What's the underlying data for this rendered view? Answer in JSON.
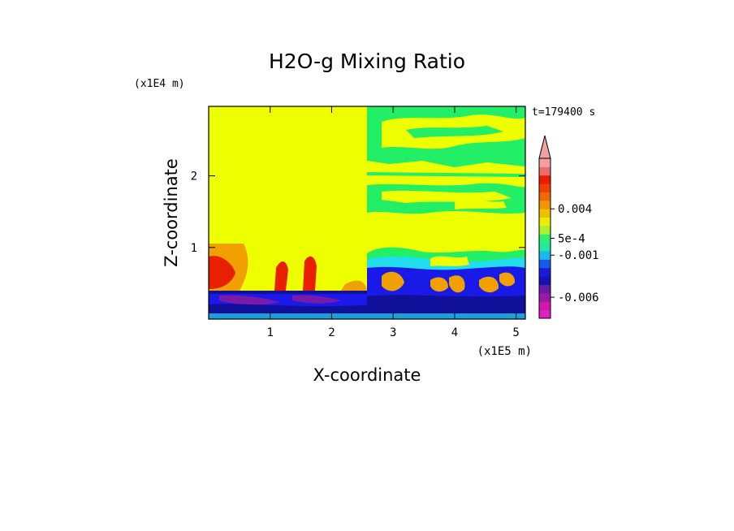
{
  "chart_data": {
    "type": "heatmap",
    "title": "H2O-g Mixing Ratio",
    "xlabel": "X-coordinate",
    "ylabel": "Z-coordinate",
    "x_scale_label": "(x1E5 m)",
    "y_scale_label": "(x1E4 m)",
    "time_label": "t=179400 s",
    "xlim": [
      0,
      5.15
    ],
    "ylim": [
      0,
      2.97
    ],
    "x_ticks": [
      {
        "value": 1,
        "label": "1"
      },
      {
        "value": 2,
        "label": "2"
      },
      {
        "value": 3,
        "label": "3"
      },
      {
        "value": 4,
        "label": "4"
      },
      {
        "value": 5,
        "label": "5"
      }
    ],
    "y_ticks": [
      {
        "value": 1,
        "label": "1"
      },
      {
        "value": 2,
        "label": "2"
      }
    ],
    "colorbar": {
      "colors": [
        "#e020c0",
        "#d019a8",
        "#9a1aa8",
        "#6a1aa8",
        "#1414b0",
        "#1a1ad8",
        "#1a5ae8",
        "#1ab8f0",
        "#22e8a0",
        "#30f070",
        "#a8f030",
        "#e8f000",
        "#f0c000",
        "#f09800",
        "#f06800",
        "#f04000",
        "#e81c00",
        "#f06a6a",
        "#f0a0a0"
      ],
      "tick_labels": [
        {
          "label": "-0.006",
          "level": 2.5
        },
        {
          "label": "-0.001",
          "level": 7.5
        },
        {
          "label": "5e-4",
          "level": 9.5
        },
        {
          "label": "0.004",
          "level": 13
        }
      ]
    },
    "colors": {
      "yellow": "#eeff00",
      "green": "#22ee66",
      "cyan": "#22ddee",
      "blue": "#1a1ae8",
      "navy": "#10109a",
      "purple": "#7a1aa8",
      "orange": "#f0a000",
      "red": "#e82000"
    },
    "regions": [
      {
        "fill": "yellow",
        "x": [
          0,
          2.5
        ],
        "z": [
          0.4,
          2.97
        ]
      },
      {
        "fill": "navy",
        "x": [
          0,
          5.15
        ],
        "z": [
          0,
          0.4
        ]
      }
    ]
  }
}
